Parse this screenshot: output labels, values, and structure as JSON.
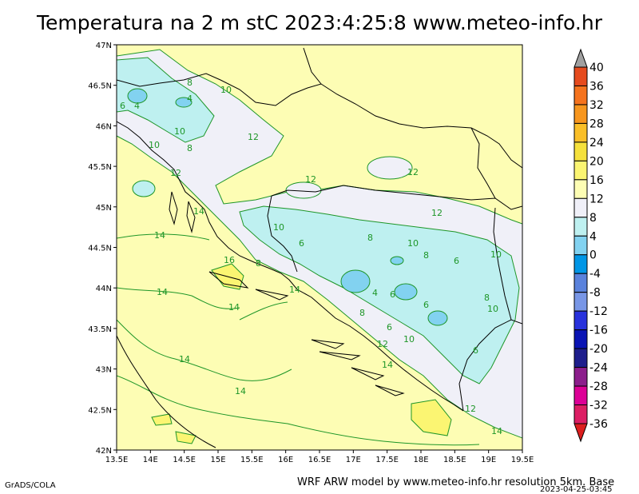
{
  "title": "Temperatura na 2 m stC 2023:4:25:8 www.meteo-info.hr",
  "footer": {
    "software": "GrADS/COLA",
    "credit": "WRF ARW model by www.meteo-info.hr resolution 5km. Base",
    "timestamp": "2023-04-25-03:45"
  },
  "map": {
    "lat_labels": [
      "47N",
      "46.5N",
      "46N",
      "45.5N",
      "45N",
      "44.5N",
      "44N",
      "43.5N",
      "43N",
      "42.5N",
      "42N"
    ],
    "lon_labels": [
      "13.5E",
      "14E",
      "14.5E",
      "15E",
      "15.5E",
      "16E",
      "16.5E",
      "17E",
      "17.5E",
      "18E",
      "18.5E",
      "19E",
      "19.5E"
    ],
    "contour_labels": [
      "14",
      "10",
      "12",
      "8",
      "6",
      "4",
      "16"
    ]
  },
  "colorbar": {
    "levels": [
      "40",
      "36",
      "32",
      "28",
      "24",
      "20",
      "16",
      "12",
      "8",
      "4",
      "0",
      "-4",
      "-8",
      "-12",
      "-16",
      "-20",
      "-24",
      "-28",
      "-32",
      "-36"
    ],
    "colors": [
      "#a0a0a0",
      "#e64b1e",
      "#f5731e",
      "#f7961e",
      "#fabf28",
      "#f5e13c",
      "#fbf572",
      "#fdfdb4",
      "#f0f0f8",
      "#bef0f0",
      "#82d2f0",
      "#0096e6",
      "#5a82dc",
      "#7896e6",
      "#2832dc",
      "#0a14b4",
      "#1e1e8c",
      "#8c1e8c",
      "#dc0096",
      "#dc1e64",
      "#dc1e1e"
    ]
  }
}
